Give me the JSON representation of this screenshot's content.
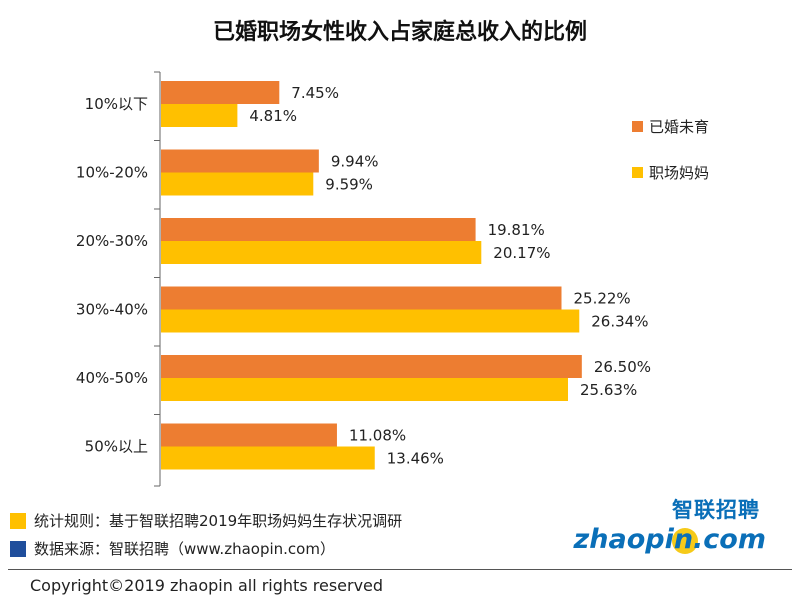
{
  "title": "已婚职场女性收入占家庭总收入的比例",
  "chart_data": {
    "type": "bar",
    "orientation": "horizontal",
    "categories": [
      "10%以下",
      "10%-20%",
      "20%-30%",
      "30%-40%",
      "40%-50%",
      "50%以上"
    ],
    "series": [
      {
        "name": "已婚未育",
        "color": "#ED7D31",
        "values": [
          7.45,
          9.94,
          19.81,
          25.22,
          26.5,
          11.08
        ],
        "labels": [
          "7.45%",
          "9.94%",
          "19.81%",
          "25.22%",
          "26.50%",
          "11.08%"
        ]
      },
      {
        "name": "职场妈妈",
        "color": "#FFC000",
        "values": [
          4.81,
          9.59,
          20.17,
          26.34,
          25.63,
          13.46
        ],
        "labels": [
          "4.81%",
          "9.59%",
          "20.17%",
          "26.34%",
          "25.63%",
          "13.46%"
        ]
      }
    ],
    "legend_position": "right",
    "grid": false
  },
  "footnotes": {
    "rule": "统计规则：基于智联招聘2019年职场妈妈生存状况调研",
    "source": "数据来源：智联招聘（www.zhaopin.com）"
  },
  "logo": {
    "cn": "智联招聘",
    "en": "zhaopin.com",
    "icon": "zhaopin-logo"
  },
  "copyright": "Copyright©2019 zhaopin all rights reserved"
}
